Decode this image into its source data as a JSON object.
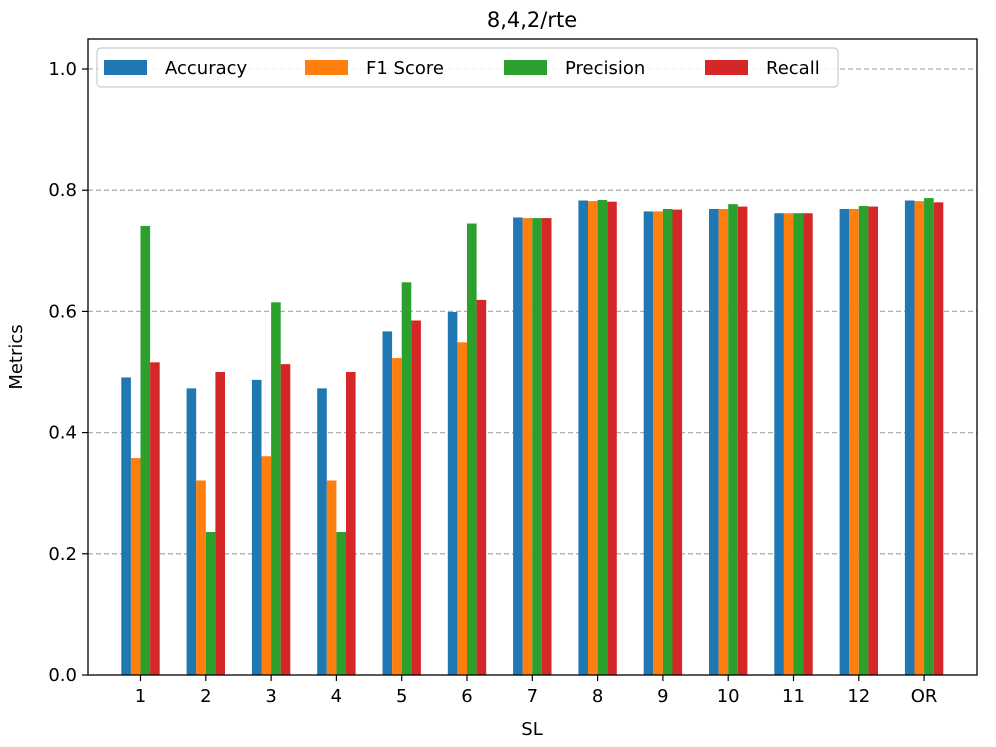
{
  "chart_data": {
    "type": "bar",
    "title": "8,4,2/rte",
    "xlabel": "SL",
    "ylabel": "Metrics",
    "ylim": [
      0,
      1.05
    ],
    "yticks": [
      "0.0",
      "0.2",
      "0.4",
      "0.6",
      "0.8",
      "1.0"
    ],
    "grid": "horizontal dashed",
    "legend_position": "top",
    "categories": [
      "1",
      "2",
      "3",
      "4",
      "5",
      "6",
      "7",
      "8",
      "9",
      "10",
      "11",
      "12",
      "OR"
    ],
    "series": [
      {
        "name": "Accuracy",
        "color": "#1f77b4",
        "values": [
          0.491,
          0.473,
          0.487,
          0.473,
          0.567,
          0.599,
          0.755,
          0.783,
          0.765,
          0.769,
          0.762,
          0.769,
          0.783
        ]
      },
      {
        "name": "F1 Score",
        "color": "#ff7f0e",
        "values": [
          0.358,
          0.321,
          0.361,
          0.321,
          0.523,
          0.549,
          0.754,
          0.782,
          0.765,
          0.769,
          0.762,
          0.769,
          0.782
        ]
      },
      {
        "name": "Precision",
        "color": "#2ca02c",
        "values": [
          0.741,
          0.236,
          0.615,
          0.236,
          0.648,
          0.745,
          0.754,
          0.784,
          0.769,
          0.777,
          0.762,
          0.774,
          0.787
        ]
      },
      {
        "name": "Recall",
        "color": "#d62728",
        "values": [
          0.516,
          0.5,
          0.513,
          0.5,
          0.585,
          0.619,
          0.754,
          0.781,
          0.768,
          0.773,
          0.762,
          0.773,
          0.78
        ]
      }
    ]
  }
}
